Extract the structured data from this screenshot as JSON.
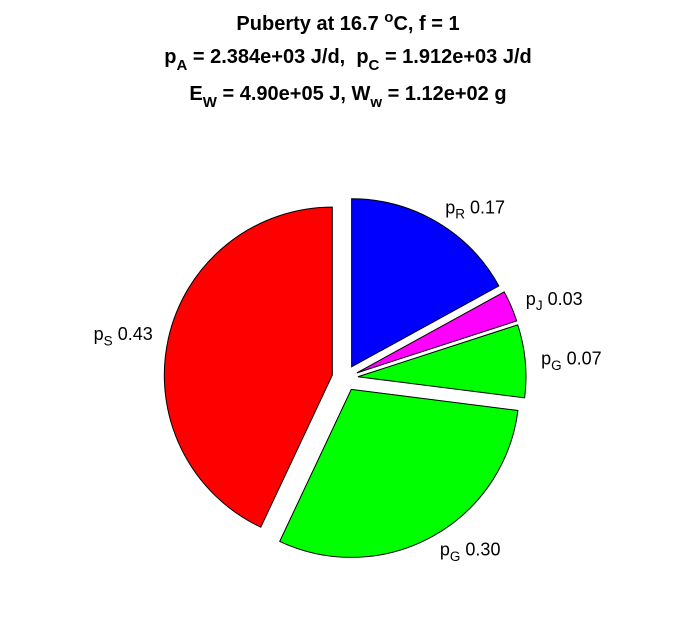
{
  "chart_data": {
    "type": "pie",
    "title": [
      [
        {
          "text": "Puberty at 16.7 "
        },
        {
          "text": "o",
          "script": "sup"
        },
        {
          "text": "C, f = 1"
        }
      ],
      [
        {
          "text": "p"
        },
        {
          "text": "A",
          "script": "sub"
        },
        {
          "text": " = 2.384e+03 J/d,  p"
        },
        {
          "text": "C",
          "script": "sub"
        },
        {
          "text": " = 1.912e+03 J/d"
        }
      ],
      [
        {
          "text": "E"
        },
        {
          "text": "W",
          "script": "sub"
        },
        {
          "text": " = 4.90e+05 J, W"
        },
        {
          "text": "w",
          "script": "sub"
        },
        {
          "text": " = 1.12e+02 g"
        }
      ]
    ],
    "labels": [
      {
        "base": "p",
        "sub": "R"
      },
      {
        "base": "p",
        "sub": "J"
      },
      {
        "base": "p",
        "sub": "G"
      },
      {
        "base": "p",
        "sub": "G"
      },
      {
        "base": "p",
        "sub": "S"
      }
    ],
    "values": [
      0.17,
      0.03,
      0.07,
      0.3,
      0.43
    ],
    "value_labels": [
      "0.17",
      "0.03",
      "0.07",
      "0.30",
      "0.43"
    ],
    "colors": [
      "#0000ff",
      "#ff00ff",
      "#00ff00",
      "#00ff00",
      "#ff0000"
    ],
    "exploded": true
  }
}
